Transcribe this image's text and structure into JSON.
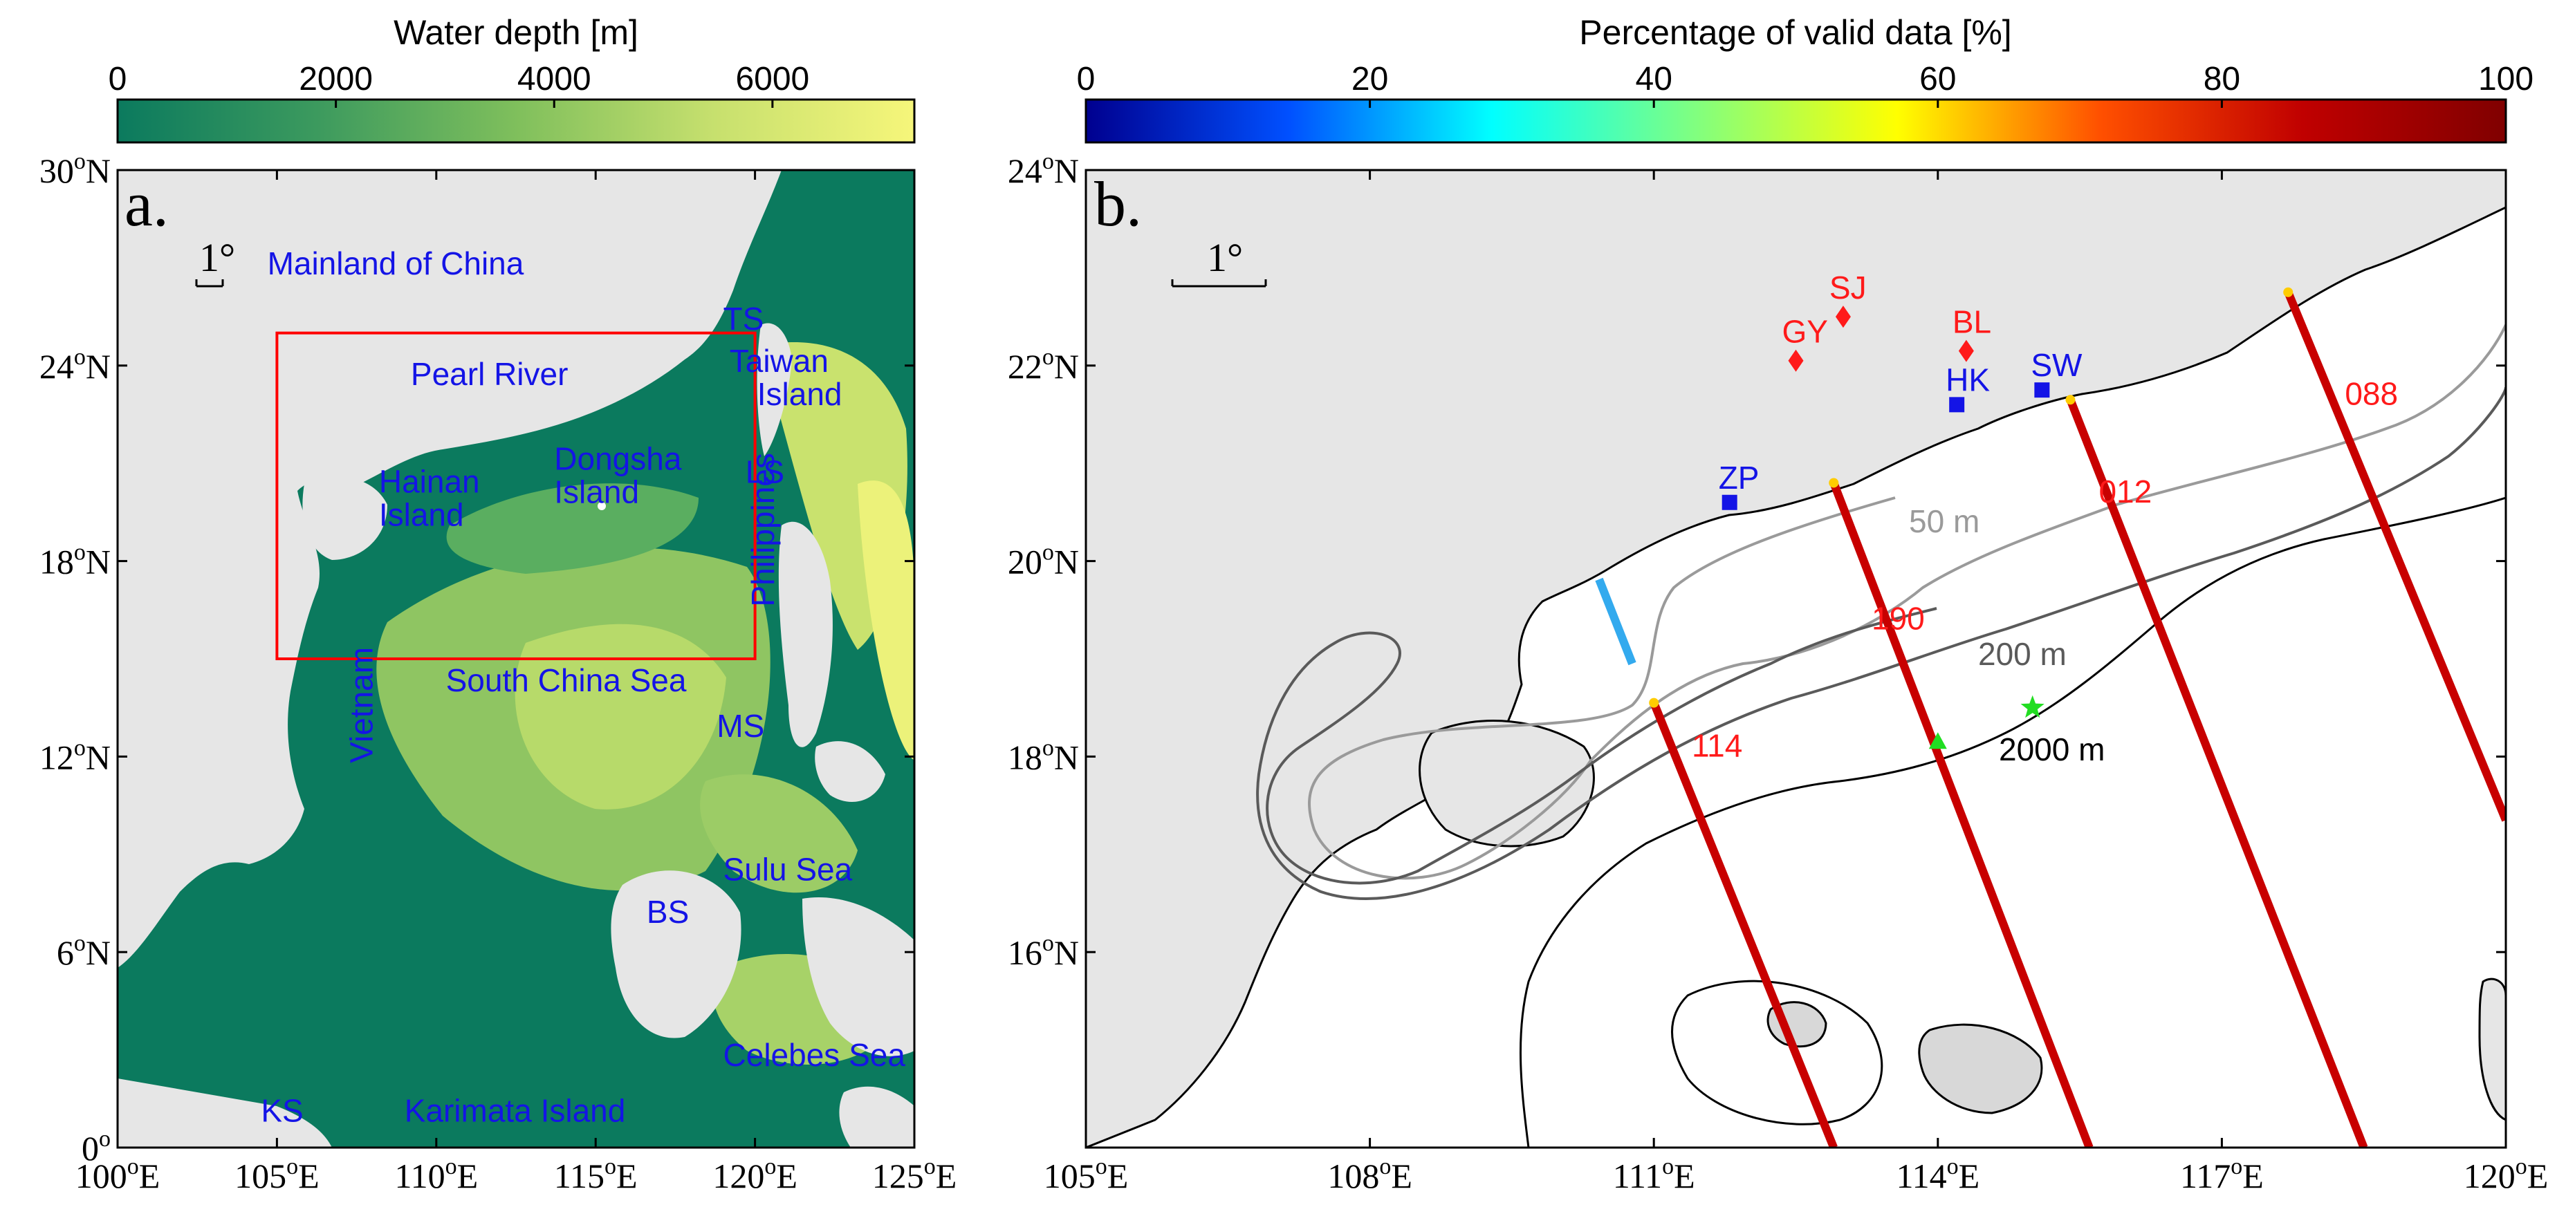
{
  "panel_a": {
    "letter": "a.",
    "colorbar": {
      "title": "Water depth [m]",
      "ticks": [
        {
          "label": "0",
          "value": 0
        },
        {
          "label": "2000",
          "value": 2000
        },
        {
          "label": "4000",
          "value": 4000
        },
        {
          "label": "6000",
          "value": 6000
        }
      ],
      "range": [
        0,
        7300
      ],
      "colors": [
        "#0b7a5e",
        "#3c9a5e",
        "#7fbf5c",
        "#c7e06e",
        "#f6f67a"
      ]
    },
    "x_ticks": [
      "100°E",
      "105°E",
      "110°E",
      "115°E",
      "120°E",
      "125°E"
    ],
    "y_ticks": [
      "0°",
      "6°N",
      "12°N",
      "18°N",
      "24°N",
      "30°N"
    ],
    "x_range": [
      100,
      125
    ],
    "y_range": [
      0,
      30
    ],
    "scale": "1°",
    "study_box": {
      "lon": [
        105,
        120
      ],
      "lat": [
        15,
        25
      ],
      "color": "#ff0000"
    },
    "places": [
      {
        "name": "Mainland of China",
        "lon": 104.7,
        "lat": 26.8
      },
      {
        "name": "Pearl River",
        "lon": 109.2,
        "lat": 23.4
      },
      {
        "name": "TS",
        "lon": 119.0,
        "lat": 25.1
      },
      {
        "name": "Taiwan Island",
        "lon": 119.2,
        "lat": 23.8
      },
      {
        "name": "LS",
        "lon": 119.7,
        "lat": 20.4
      },
      {
        "name": "Hainan Island",
        "lon": 108.2,
        "lat": 20.1
      },
      {
        "name": "Dongsha Island",
        "lon": 113.7,
        "lat": 20.8
      },
      {
        "name": "Philippines",
        "lon": 120.6,
        "lat": 16.6
      },
      {
        "name": "South China Sea",
        "lon": 110.3,
        "lat": 14.0
      },
      {
        "name": "Vietnam",
        "lon": 108.0,
        "lat": 11.8
      },
      {
        "name": "MS",
        "lon": 118.8,
        "lat": 12.6
      },
      {
        "name": "Sulu Sea",
        "lon": 119.0,
        "lat": 8.2
      },
      {
        "name": "BS",
        "lon": 116.6,
        "lat": 6.9
      },
      {
        "name": "Celebes Sea",
        "lon": 119.0,
        "lat": 2.5
      },
      {
        "name": "KS",
        "lon": 104.5,
        "lat": 0.8
      },
      {
        "name": "Karimata Island",
        "lon": 109.0,
        "lat": 0.8
      }
    ]
  },
  "panel_b": {
    "letter": "b.",
    "colorbar": {
      "title": "Percentage of valid data [%]",
      "ticks": [
        {
          "label": "0",
          "value": 0
        },
        {
          "label": "20",
          "value": 20
        },
        {
          "label": "40",
          "value": 40
        },
        {
          "label": "60",
          "value": 60
        },
        {
          "label": "80",
          "value": 80
        },
        {
          "label": "100",
          "value": 100
        }
      ],
      "range": [
        0,
        100
      ],
      "colors": [
        "#00008f",
        "#0050ff",
        "#00ffff",
        "#80ff80",
        "#ffff00",
        "#ff5000",
        "#c00000",
        "#800000"
      ]
    },
    "x_ticks": [
      "105°E",
      "108°E",
      "111°E",
      "114°E",
      "117°E",
      "120°E"
    ],
    "y_ticks": [
      "16°N",
      "18°N",
      "20°N",
      "22°N",
      "24°N"
    ],
    "x_range": [
      105,
      120
    ],
    "y_range": [
      15,
      25
    ],
    "scale": "1°",
    "tracks": [
      {
        "name": "114",
        "from": [
          111.0,
          19.55
        ],
        "to": [
          112.9,
          15.0
        ],
        "label_at": [
          111.4,
          19.0
        ]
      },
      {
        "name": "190",
        "from": [
          112.9,
          21.8
        ],
        "to": [
          115.6,
          15.0
        ],
        "label_at": [
          113.3,
          20.3
        ]
      },
      {
        "name": "012",
        "from": [
          115.4,
          22.65
        ],
        "to": [
          118.5,
          15.0
        ],
        "label_at": [
          115.7,
          21.6
        ]
      },
      {
        "name": "088",
        "from": [
          117.7,
          23.75
        ],
        "to": [
          120.0,
          18.35
        ],
        "label_at": [
          118.3,
          22.6
        ]
      }
    ],
    "stations_red": [
      {
        "name": "SJ",
        "lon": 113.0,
        "lat": 23.5
      },
      {
        "name": "GY",
        "lon": 112.5,
        "lat": 23.05
      },
      {
        "name": "BL",
        "lon": 114.3,
        "lat": 23.15
      }
    ],
    "stations_blue": [
      {
        "name": "ZP",
        "lon": 111.8,
        "lat": 21.6
      },
      {
        "name": "HK",
        "lon": 114.2,
        "lat": 22.6
      },
      {
        "name": "SW",
        "lon": 115.1,
        "lat": 22.75
      }
    ],
    "contours": [
      {
        "label": "50 m",
        "color": "#9a9a9a"
      },
      {
        "label": "200 m",
        "color": "#5a5a5a"
      },
      {
        "label": "2000 m",
        "color": "#000000"
      }
    ],
    "marker_star": {
      "lon": 115.0,
      "lat": 19.5,
      "color": "#22dd22"
    },
    "marker_triangle": {
      "lon": 114.0,
      "lat": 19.15,
      "color": "#22dd22"
    }
  }
}
